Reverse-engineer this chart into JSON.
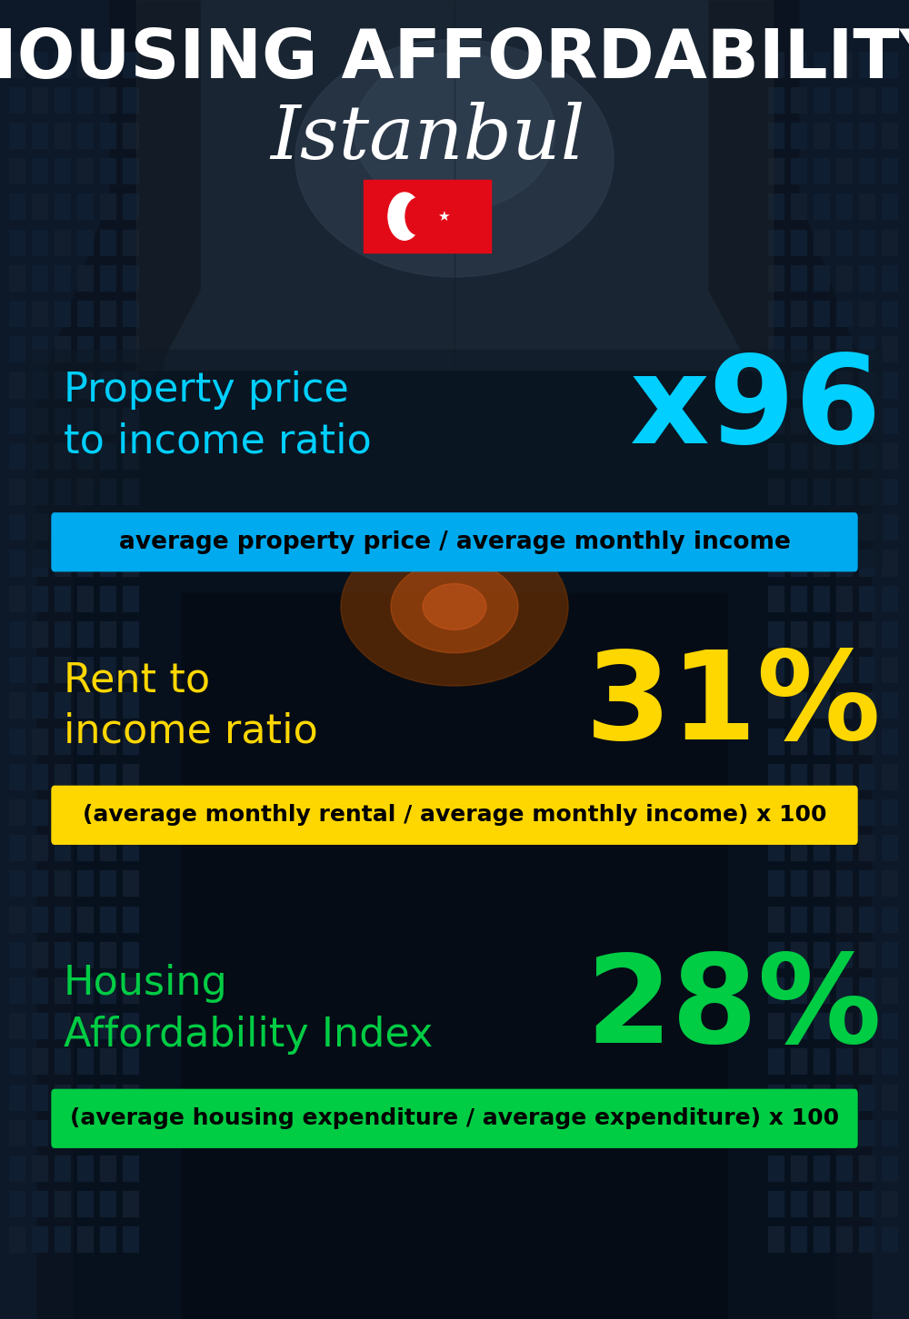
{
  "title_line1": "HOUSING AFFORDABILITY",
  "title_line2": "Istanbul",
  "bg_color": "#07111e",
  "title1_color": "#ffffff",
  "title2_color": "#ffffff",
  "section1_label": "Property price\nto income ratio",
  "section1_value": "x96",
  "section1_label_color": "#00cfff",
  "section1_value_color": "#00cfff",
  "section1_formula": "average property price / average monthly income",
  "section1_formula_bg": "#00aaee",
  "section2_label": "Rent to\nincome ratio",
  "section2_value": "31%",
  "section2_label_color": "#ffd700",
  "section2_value_color": "#ffd700",
  "section2_formula": "(average monthly rental / average monthly income) x 100",
  "section2_formula_bg": "#ffd700",
  "section3_label": "Housing\nAffordability Index",
  "section3_value": "28%",
  "section3_label_color": "#00cc44",
  "section3_value_color": "#00cc44",
  "section3_formula": "(average housing expenditure / average expenditure) x 100",
  "section3_formula_bg": "#00cc44",
  "turkey_red": "#e30a17",
  "turkey_white": "#ffffff",
  "fig_width": 10.0,
  "fig_height": 14.52,
  "dpi": 100
}
